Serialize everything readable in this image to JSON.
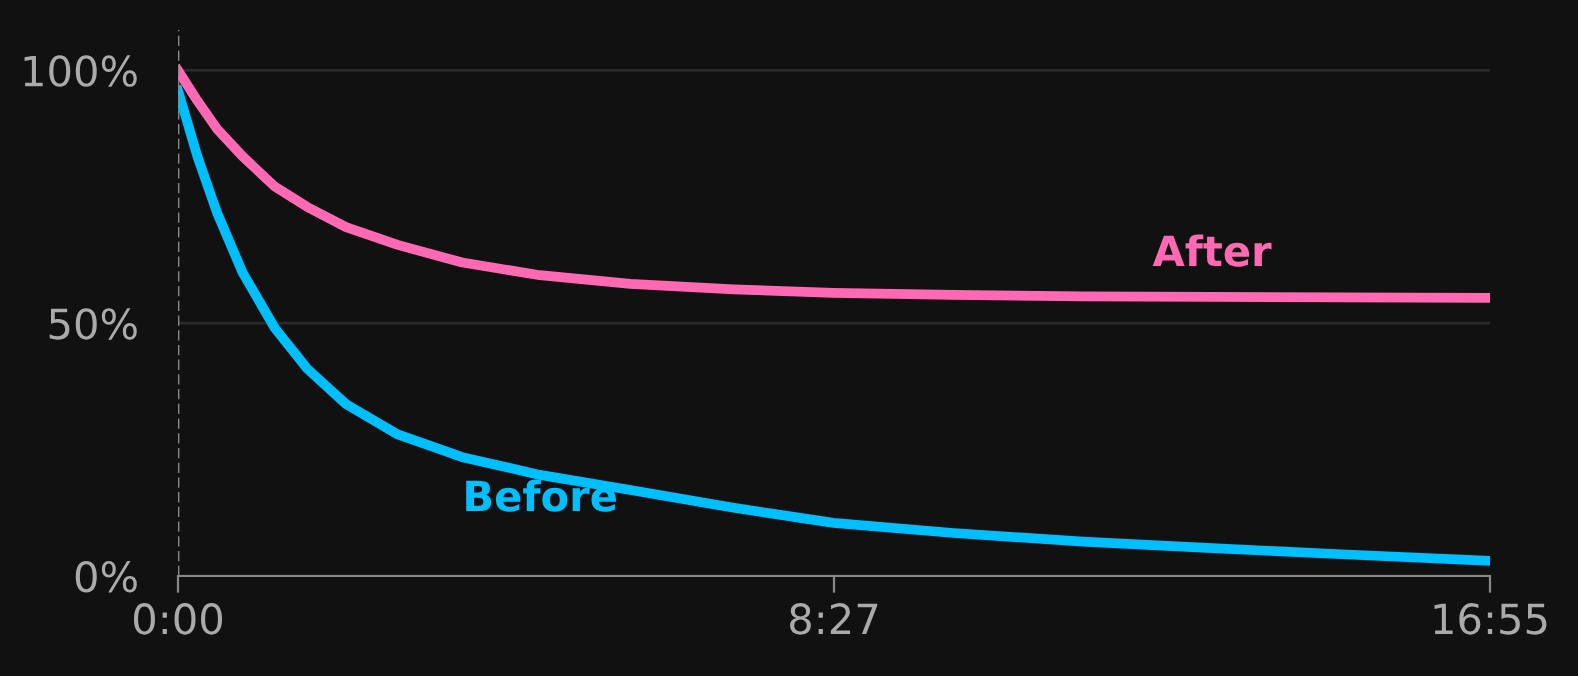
{
  "chart_data": {
    "type": "line",
    "x": [
      0,
      15,
      30,
      50,
      75,
      100,
      130,
      170,
      220,
      280,
      350,
      430,
      507,
      600,
      700,
      800,
      900,
      1015
    ],
    "series": [
      {
        "name": "After",
        "color": "#ff69b4",
        "values": [
          100,
          94,
          88.5,
          83,
          77,
          73,
          69,
          65.5,
          62,
          59.5,
          57.8,
          56.7,
          56,
          55.6,
          55.3,
          55.2,
          55.1,
          55
        ]
      },
      {
        "name": "Before",
        "color": "#00bfff",
        "values": [
          96,
          83,
          72,
          60,
          49,
          41,
          34,
          28,
          23.5,
          20,
          17,
          13.5,
          10.5,
          8.5,
          6.8,
          5.5,
          4.3,
          3
        ]
      }
    ],
    "xlim": [
      0,
      1015
    ],
    "xticks": [
      {
        "value": 0,
        "label": "0:00"
      },
      {
        "value": 507.5,
        "label": "8:27"
      },
      {
        "value": 1015,
        "label": "16:55"
      }
    ],
    "ylim": [
      0,
      108
    ],
    "yticks": [
      {
        "value": 0,
        "label": "0%"
      },
      {
        "value": 50,
        "label": "50%"
      },
      {
        "value": 100,
        "label": "100%"
      }
    ],
    "grid": "y",
    "legend": false,
    "marker": "none",
    "line_style": "solid",
    "ref_lines": [
      {
        "axis": "x",
        "value": 0,
        "label": null,
        "color": "#888888",
        "line_style": "dashed"
      }
    ]
  }
}
